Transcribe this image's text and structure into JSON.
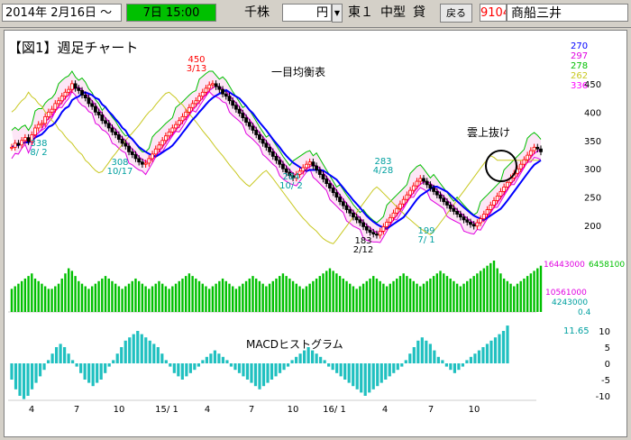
{
  "toolbar": {
    "start_date": "2014年  2月16日 ～",
    "period": "7日  15:00",
    "unit_label": "千株",
    "currency_label": "円",
    "market": "東１",
    "size": "中型",
    "credit": "貸",
    "back_button": "戻る",
    "code": "9104",
    "name": "商船三井",
    "colors": {
      "period_bg": "#00c000",
      "code_text": "#ff0000"
    }
  },
  "chart": {
    "figure_title": "【図1】週足チャート",
    "ichimoku_label": "一目均衡表",
    "breakout_label": "雲上抜け",
    "macd_label": "MACDヒストグラム",
    "legend": [
      {
        "label": "270",
        "color": "#0000ff"
      },
      {
        "label": "297",
        "color": "#e000e0"
      },
      {
        "label": "278",
        "color": "#00c000"
      },
      {
        "label": "262",
        "color": "#c8c820"
      },
      {
        "label": "336",
        "color": "#ff00ff"
      }
    ],
    "price_axis": [
      "450",
      "400",
      "350",
      "300",
      "250",
      "200"
    ],
    "volume_labels": {
      "top": "16443000",
      "top_right": "6458100",
      "mid": "10561000",
      "low": "4243000",
      "ratio": "0.4"
    },
    "macd_value": "11.65",
    "macd_axis": [
      "10",
      "5",
      "0",
      "-5",
      "-10"
    ],
    "x_labels": [
      "4",
      "7",
      "10",
      "15/ 1",
      "4",
      "7",
      "10",
      "16/ 1",
      "4",
      "7",
      "10"
    ],
    "annotations": [
      {
        "value": "450",
        "date": "3/13",
        "color": "#ff0000"
      },
      {
        "value": "338",
        "date": "8/ 2",
        "color": "#00a0a0"
      },
      {
        "value": "308",
        "date": "10/17",
        "color": "#00a0a0"
      },
      {
        "value": "284",
        "date": "10/ 2",
        "color": "#00a0a0"
      },
      {
        "value": "283",
        "date": "4/28",
        "color": "#00a0a0"
      },
      {
        "value": "183",
        "date": "2/12",
        "color": "#000000"
      },
      {
        "value": "199",
        "date": "7/ 1",
        "color": "#00a0a0"
      }
    ]
  },
  "chart_data": {
    "type": "candlestick",
    "price_range": [
      170,
      480
    ],
    "price_values": [
      338,
      345,
      342,
      350,
      355,
      348,
      360,
      372,
      378,
      380,
      392,
      400,
      405,
      415,
      420,
      428,
      435,
      440,
      450,
      442,
      438,
      430,
      425,
      415,
      410,
      400,
      395,
      385,
      380,
      372,
      365,
      360,
      352,
      345,
      340,
      330,
      325,
      318,
      312,
      308,
      310,
      318,
      326,
      335,
      342,
      350,
      358,
      365,
      372,
      378,
      385,
      392,
      400,
      408,
      415,
      420,
      428,
      435,
      442,
      448,
      450,
      445,
      440,
      432,
      428,
      420,
      412,
      405,
      398,
      390,
      382,
      375,
      368,
      360,
      352,
      345,
      338,
      330,
      322,
      315,
      308,
      300,
      294,
      288,
      284,
      290,
      296,
      302,
      308,
      312,
      305,
      298,
      290,
      282,
      274,
      266,
      258,
      250,
      242,
      235,
      228,
      222,
      215,
      210,
      205,
      198,
      192,
      188,
      185,
      183,
      190,
      198,
      206,
      214,
      222,
      230,
      238,
      246,
      254,
      262,
      270,
      278,
      283,
      278,
      272,
      266,
      260,
      254,
      248,
      242,
      236,
      230,
      225,
      220,
      215,
      210,
      206,
      202,
      199,
      205,
      212,
      220,
      228,
      236,
      244,
      252,
      260,
      268,
      276,
      284,
      292,
      300,
      308,
      316,
      324,
      332,
      338,
      335,
      330
    ],
    "volume": [
      9,
      10,
      11,
      12,
      13,
      14,
      15,
      13,
      12,
      11,
      10,
      9,
      9,
      10,
      11,
      13,
      15,
      17,
      16,
      14,
      12,
      11,
      10,
      9,
      10,
      11,
      12,
      13,
      14,
      13,
      12,
      11,
      10,
      9,
      10,
      11,
      12,
      13,
      12,
      11,
      10,
      9,
      10,
      11,
      12,
      11,
      10,
      9,
      10,
      11,
      12,
      13,
      14,
      15,
      14,
      13,
      12,
      11,
      10,
      9,
      10,
      11,
      12,
      13,
      12,
      11,
      10,
      9,
      10,
      11,
      12,
      13,
      14,
      13,
      12,
      11,
      10,
      11,
      12,
      13,
      14,
      15,
      14,
      13,
      12,
      11,
      10,
      9,
      10,
      11,
      12,
      13,
      14,
      15,
      16,
      17,
      16,
      15,
      14,
      13,
      12,
      11,
      10,
      9,
      10,
      11,
      12,
      13,
      14,
      13,
      12,
      11,
      10,
      11,
      12,
      13,
      14,
      15,
      14,
      13,
      12,
      11,
      10,
      11,
      12,
      13,
      14,
      15,
      16,
      15,
      14,
      13,
      12,
      11,
      10,
      11,
      12,
      13,
      14,
      15,
      16,
      17,
      18,
      19,
      20,
      17,
      15,
      13,
      12,
      11,
      10,
      11,
      12,
      13,
      14,
      15,
      16,
      17,
      18
    ],
    "macd_hist": [
      -5,
      -8,
      -10,
      -11,
      -10,
      -8,
      -6,
      -4,
      -2,
      1,
      3,
      5,
      6,
      5,
      3,
      1,
      -1,
      -3,
      -5,
      -6,
      -7,
      -6,
      -5,
      -3,
      -1,
      1,
      3,
      5,
      7,
      8,
      9,
      10,
      9,
      8,
      7,
      6,
      5,
      3,
      1,
      -1,
      -3,
      -4,
      -5,
      -4,
      -3,
      -2,
      -1,
      1,
      2,
      3,
      4,
      3,
      2,
      1,
      -1,
      -2,
      -3,
      -4,
      -5,
      -6,
      -7,
      -8,
      -7,
      -6,
      -5,
      -4,
      -3,
      -2,
      -1,
      1,
      2,
      3,
      4,
      5,
      4,
      3,
      2,
      1,
      -1,
      -2,
      -3,
      -4,
      -5,
      -6,
      -7,
      -8,
      -9,
      -10,
      -9,
      -8,
      -7,
      -6,
      -5,
      -4,
      -3,
      -2,
      -1,
      1,
      3,
      5,
      7,
      8,
      7,
      6,
      4,
      2,
      1,
      -1,
      -2,
      -3,
      -2,
      -1,
      1,
      2,
      3,
      4,
      5,
      6,
      7,
      8,
      9,
      10,
      11.65
    ]
  }
}
